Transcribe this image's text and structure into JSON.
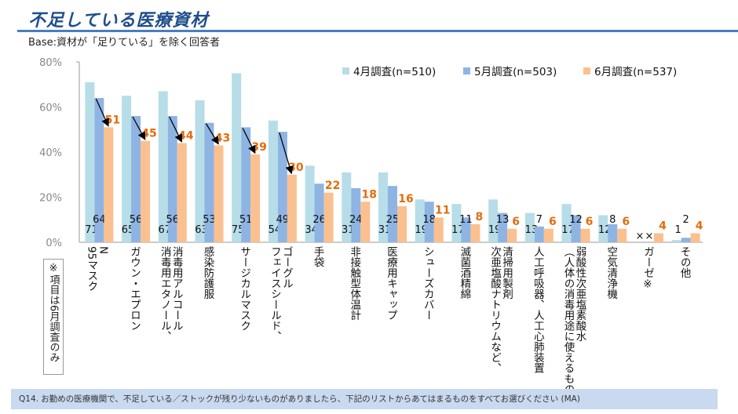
{
  "title": "不足している医療資材",
  "base": "Base:資材が「足りている」を除く回答者",
  "note": "※項目は6月調査のみ",
  "footer": "Q14. お勤めの医療機関で、不足している／ストックが残り少ないものがありましたら、下記のリストからあてはまるものをすべてお選びください (MA)",
  "chart_data": {
    "type": "bar",
    "ylim": [
      0,
      80
    ],
    "yticks": [
      "0%",
      "20%",
      "40%",
      "60%",
      "80%"
    ],
    "grid": false,
    "legend_position": "top-right",
    "categories": [
      [
        "N",
        "95マスク"
      ],
      [
        "ガウン・エプロン"
      ],
      [
        "消毒用アルコール",
        "消毒用エタノール、"
      ],
      [
        "感染防護服"
      ],
      [
        "サージカルマスク"
      ],
      [
        "ゴーグル",
        "フェイスシールド、"
      ],
      [
        "手袋"
      ],
      [
        "非接触型体温計"
      ],
      [
        "医療用キャップ"
      ],
      [
        "シューズカバー"
      ],
      [
        "滅菌酒精綿"
      ],
      [
        "清掃用製剤",
        "次亜塩酸ナトリウムなど、"
      ],
      [
        "人工呼吸器、人工心肺装置"
      ],
      [
        "弱酸性次亜塩素酸水",
        "（人体の消毒用途に使えるもの）"
      ],
      [
        "空気清浄機"
      ],
      [
        "ガーゼ※"
      ],
      [
        "その他"
      ]
    ],
    "series": [
      {
        "name": "4月調査(n=510)",
        "color": "#b7dde8",
        "values": [
          71,
          65,
          67,
          63,
          75,
          54,
          34,
          31,
          31,
          19,
          17,
          19,
          13,
          17,
          12,
          null,
          1
        ],
        "missing_label": "×"
      },
      {
        "name": "5月調査(n=503)",
        "color": "#8eb4e3",
        "values": [
          64,
          56,
          56,
          53,
          51,
          49,
          26,
          24,
          25,
          18,
          11,
          13,
          7,
          12,
          8,
          null,
          2
        ],
        "missing_label": "×"
      },
      {
        "name": "6月調査(n=537)",
        "color": "#fac090",
        "label_color": "#e46c0a",
        "values": [
          51,
          45,
          44,
          43,
          39,
          30,
          22,
          18,
          16,
          11,
          8,
          6,
          6,
          6,
          6,
          4,
          4
        ]
      }
    ],
    "arrows_from_may_to_june_groups": 6
  }
}
